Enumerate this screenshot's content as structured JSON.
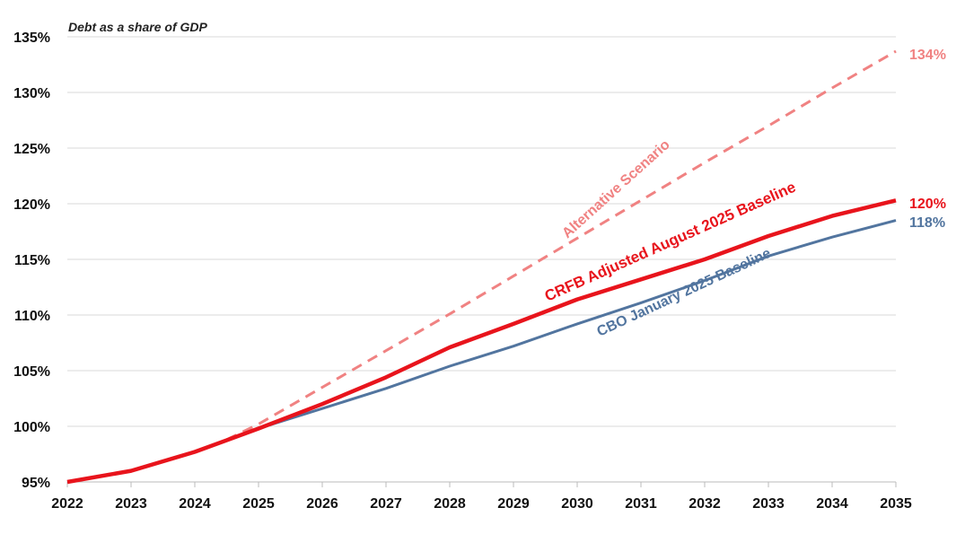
{
  "chart_data": {
    "type": "line",
    "title": "Debt as a share of GDP",
    "xlabel": "",
    "ylabel": "",
    "x": [
      2022,
      2023,
      2024,
      2025,
      2026,
      2027,
      2028,
      2029,
      2030,
      2031,
      2032,
      2033,
      2034,
      2035
    ],
    "ylim": [
      95,
      135
    ],
    "yticks": [
      "95%",
      "100%",
      "105%",
      "110%",
      "115%",
      "120%",
      "125%",
      "130%",
      "135%"
    ],
    "ytick_values": [
      95,
      100,
      105,
      110,
      115,
      120,
      125,
      130,
      135
    ],
    "xticks": [
      "2022",
      "2023",
      "2024",
      "2025",
      "2026",
      "2027",
      "2028",
      "2029",
      "2030",
      "2031",
      "2032",
      "2033",
      "2034",
      "2035"
    ],
    "grid": "horizontal",
    "series": [
      {
        "name": "Alternative Scenario",
        "color": "#f08282",
        "dashed": true,
        "x": [
          2024.5,
          2025,
          2026,
          2027,
          2028,
          2029,
          2030,
          2031,
          2032,
          2033,
          2034,
          2035
        ],
        "values": [
          98.8,
          100.2,
          103.5,
          106.8,
          110.1,
          113.5,
          116.9,
          120.3,
          123.7,
          127.0,
          130.4,
          133.7
        ],
        "end_label": "134%"
      },
      {
        "name": "CBO January 2025 Baseline",
        "color": "#52759f",
        "dashed": false,
        "x": [
          2022,
          2023,
          2024,
          2025,
          2026,
          2027,
          2028,
          2029,
          2030,
          2031,
          2032,
          2033,
          2034,
          2035
        ],
        "values": [
          95.0,
          96.0,
          97.7,
          99.8,
          101.6,
          103.4,
          105.4,
          107.2,
          109.2,
          111.1,
          113.1,
          115.3,
          117.0,
          118.5
        ],
        "end_label": "118%"
      },
      {
        "name": "CRFB Adjusted August 2025 Baseline",
        "color": "#e8141c",
        "dashed": false,
        "x": [
          2022,
          2023,
          2024,
          2025,
          2026,
          2027,
          2028,
          2029,
          2030,
          2031,
          2032,
          2033,
          2034,
          2035
        ],
        "values": [
          95.0,
          96.0,
          97.7,
          99.8,
          102.0,
          104.4,
          107.1,
          109.2,
          111.4,
          113.2,
          115.0,
          117.1,
          118.9,
          120.3
        ],
        "end_label": "120%"
      }
    ]
  }
}
